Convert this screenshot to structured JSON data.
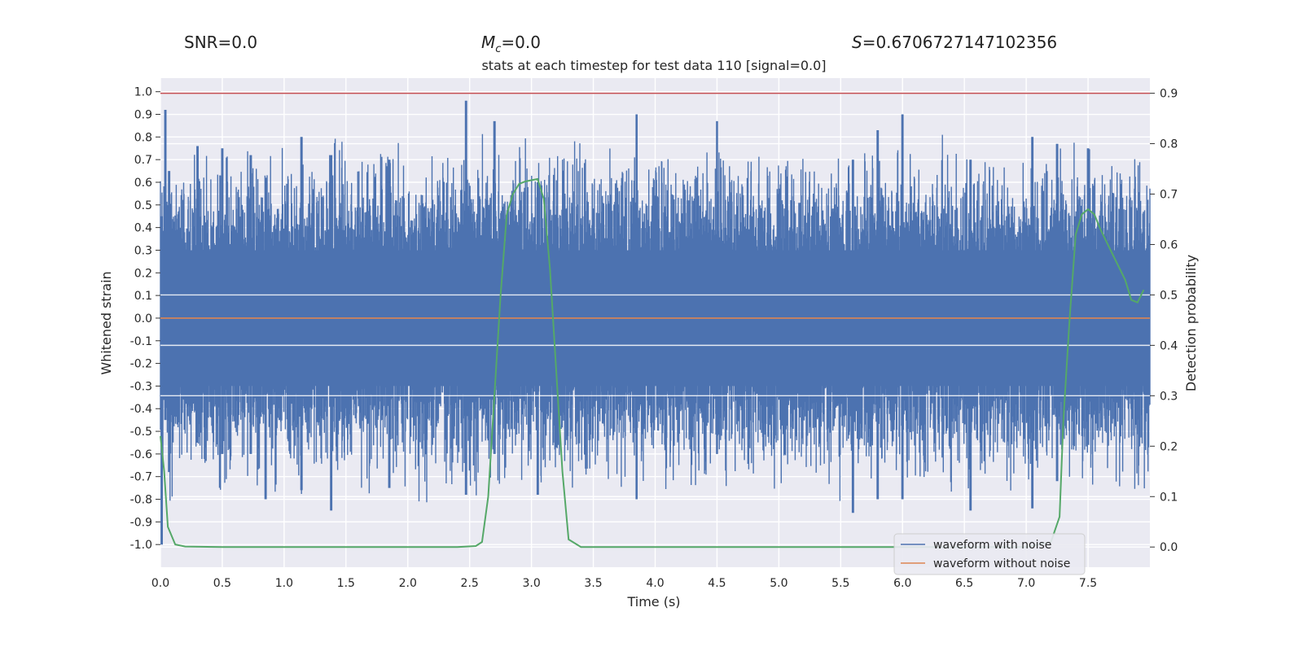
{
  "header": {
    "snr": "SNR=0.0",
    "mc_value": "=0.0",
    "s_value": "=0.6706727147102356"
  },
  "chart_data": {
    "type": "line",
    "title": "stats at each timestep for test data 110 [signal=0.0]",
    "xlabel": "Time (s)",
    "ylabel_left": "Whitened strain",
    "ylabel_right": "Detection probability",
    "xlim": [
      0,
      8
    ],
    "ylim_left": [
      -1.1,
      1.06
    ],
    "ylim_right": [
      -0.04,
      0.93
    ],
    "x_ticks": [
      "0.0",
      "0.5",
      "1.0",
      "1.5",
      "2.0",
      "2.5",
      "3.0",
      "3.5",
      "4.0",
      "4.5",
      "5.0",
      "5.5",
      "6.0",
      "6.5",
      "7.0",
      "7.5"
    ],
    "y_ticks_left": [
      "1.0",
      "0.9",
      "0.8",
      "0.7",
      "0.6",
      "0.5",
      "0.4",
      "0.3",
      "0.2",
      "0.1",
      "0.0",
      "-0.1",
      "-0.2",
      "-0.3",
      "-0.4",
      "-0.5",
      "-0.6",
      "-0.7",
      "-0.8",
      "-0.9",
      "-1.0"
    ],
    "y_ticks_right": [
      "0.9",
      "0.8",
      "0.7",
      "0.6",
      "0.5",
      "0.4",
      "0.3",
      "0.2",
      "0.1",
      "0.0"
    ],
    "grid": true,
    "legend_position": "lower-right",
    "threshold": 0.9,
    "series": [
      {
        "name": "waveform with noise",
        "color": "#4c72b0",
        "axis": "left",
        "envelope_peaks": [
          {
            "x": 0.01,
            "top": 0.45,
            "bottom": -1.0
          },
          {
            "x": 0.04,
            "top": 0.92,
            "bottom": -0.45
          },
          {
            "x": 0.07,
            "top": 0.65,
            "bottom": -0.68
          },
          {
            "x": 0.3,
            "top": 0.76,
            "bottom": -0.55
          },
          {
            "x": 0.5,
            "top": 0.75,
            "bottom": -0.6
          },
          {
            "x": 0.73,
            "top": 0.72,
            "bottom": -0.6
          },
          {
            "x": 0.85,
            "top": 0.62,
            "bottom": -0.8
          },
          {
            "x": 1.14,
            "top": 0.8,
            "bottom": -0.76
          },
          {
            "x": 1.38,
            "top": 0.72,
            "bottom": -0.85
          },
          {
            "x": 1.85,
            "top": 0.7,
            "bottom": -0.75
          },
          {
            "x": 2.47,
            "top": 0.96,
            "bottom": -0.78
          },
          {
            "x": 2.7,
            "top": 0.87,
            "bottom": -0.6
          },
          {
            "x": 3.05,
            "top": 0.6,
            "bottom": -0.78
          },
          {
            "x": 3.85,
            "top": 0.9,
            "bottom": -0.8
          },
          {
            "x": 4.5,
            "top": 0.87,
            "bottom": -0.6
          },
          {
            "x": 5.6,
            "top": 0.7,
            "bottom": -0.86
          },
          {
            "x": 5.8,
            "top": 0.83,
            "bottom": -0.8
          },
          {
            "x": 6.0,
            "top": 0.9,
            "bottom": -0.8
          },
          {
            "x": 6.55,
            "top": 0.7,
            "bottom": -0.85
          },
          {
            "x": 7.05,
            "top": 0.8,
            "bottom": -0.84
          },
          {
            "x": 7.25,
            "top": 0.77,
            "bottom": -0.72
          },
          {
            "x": 7.5,
            "top": 0.75,
            "bottom": -0.56
          }
        ]
      },
      {
        "name": "waveform without noise",
        "color": "#dd8452",
        "axis": "left",
        "x": [
          0,
          8
        ],
        "y": [
          0.0,
          0.0
        ]
      },
      {
        "name": "",
        "color": "#55a868",
        "axis": "right",
        "x": [
          0,
          0.03,
          0.06,
          0.12,
          0.2,
          0.5,
          1,
          1.5,
          2,
          2.4,
          2.55,
          2.6,
          2.65,
          2.7,
          2.75,
          2.8,
          2.85,
          2.9,
          2.95,
          3.05,
          3.1,
          3.15,
          3.2,
          3.25,
          3.3,
          3.4,
          4,
          5,
          6,
          7,
          7.2,
          7.27,
          7.3,
          7.35,
          7.4,
          7.45,
          7.5,
          7.55,
          7.6,
          7.7,
          7.8,
          7.85,
          7.9,
          7.95
        ],
        "y": [
          0.22,
          0.15,
          0.04,
          0.005,
          0.001,
          0.0,
          0.0,
          0.0,
          0.0,
          0.0,
          0.002,
          0.01,
          0.1,
          0.3,
          0.5,
          0.66,
          0.7,
          0.72,
          0.725,
          0.73,
          0.69,
          0.55,
          0.35,
          0.15,
          0.015,
          0.0,
          0.0,
          0.0,
          0.0,
          0.0,
          0.01,
          0.06,
          0.25,
          0.45,
          0.62,
          0.66,
          0.67,
          0.66,
          0.63,
          0.58,
          0.53,
          0.49,
          0.485,
          0.51
        ]
      }
    ]
  }
}
